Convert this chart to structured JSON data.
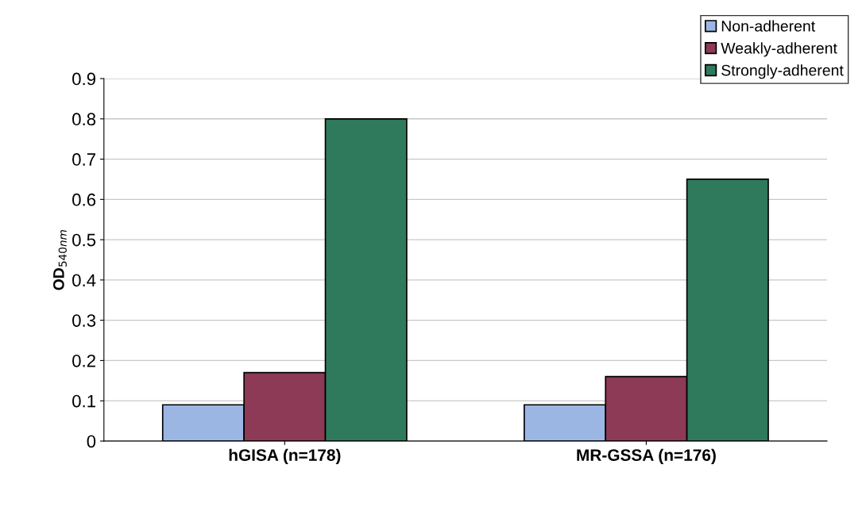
{
  "chart_data": {
    "type": "bar",
    "ylabel": "OD$_{540nm}$",
    "categories": [
      "hGISA (n=178)",
      "MR-GSSA (n=176)"
    ],
    "series": [
      {
        "name": "Non-adherent",
        "color": "#9cb6e4",
        "values": [
          0.09,
          0.09
        ]
      },
      {
        "name": "Weakly-adherent",
        "color": "#8c3a55",
        "values": [
          0.17,
          0.16
        ]
      },
      {
        "name": "Strongly-adherent",
        "color": "#2f7a5c",
        "values": [
          0.8,
          0.65
        ]
      }
    ],
    "ylim": [
      0,
      0.9
    ],
    "yticks": [
      0,
      0.1,
      0.2,
      0.3,
      0.4,
      0.5,
      0.6,
      0.7,
      0.8,
      0.9
    ],
    "grid": "y",
    "legend": "top right"
  }
}
